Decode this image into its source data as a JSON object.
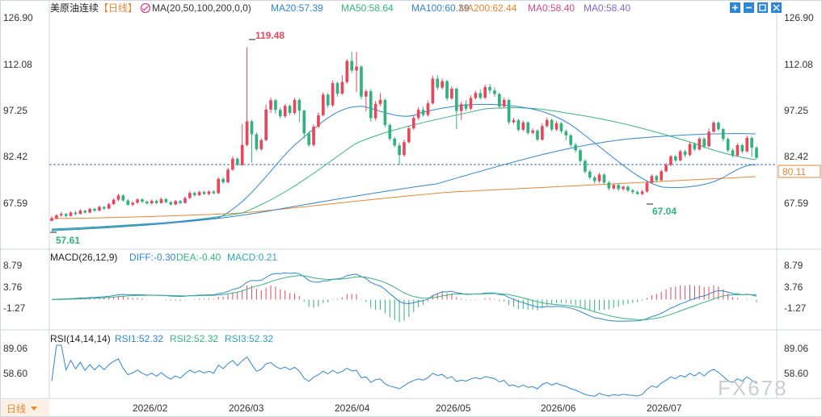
{
  "colors": {
    "up": "#e8465b",
    "down": "#2fb27e",
    "ma20": "#2e86d6",
    "ma50": "#34b57f",
    "ma100": "#2e86d6",
    "ma200": "#e8862f",
    "macd_diff": "#2e86d6",
    "macd_dea": "#34b57f",
    "rsi": "#2e86d6",
    "label_teal": "#2aa7b3",
    "price_tag": "#e8862f"
  },
  "header": {
    "title": "美原油连续",
    "period": "【日线】",
    "ma_params": "MA(20,50,100,200,0,0)",
    "ma_values": [
      "MA20:57.39",
      "MA50:58.64",
      "MA100:60.39",
      "MA200:62.44",
      "MA0:58.40",
      "MA0:58.40"
    ]
  },
  "macd_header": {
    "name": "MACD(26,12,9)",
    "values": [
      "DIFF:-0.30",
      "DEA:-0.40",
      "MACD:0.21"
    ]
  },
  "rsi_header": {
    "name": "RSI(14,14,14)",
    "values": [
      "RSI1:52.32",
      "RSI2:52.32",
      "RSI3:52.32"
    ]
  },
  "footer": {
    "period_button": "日线"
  },
  "watermark": "FX678",
  "window_icons": [
    "plus-icon",
    "minus-icon",
    "expand-icon",
    "close-icon"
  ],
  "chart_data": [
    {
      "type": "candlestick",
      "name": "美原油连续",
      "yaxis_ticks": [
        "126.90",
        "112.08",
        "97.25",
        "82.42",
        "67.59"
      ],
      "ylim": [
        53.0,
        130.0
      ],
      "xaxis_labels": [
        "2026/02",
        "2026/03",
        "2026/04",
        "2026/05",
        "2026/06",
        "2026/07"
      ],
      "last_price": "80.11",
      "annotations": [
        {
          "text": "119.48",
          "type": "high"
        },
        {
          "text": "57.61",
          "type": "low"
        },
        {
          "text": "67.04",
          "type": "low"
        }
      ],
      "candles": [
        [
          57.6,
          58.6,
          57.6,
          59.3
        ],
        [
          58.6,
          59.6,
          58.2,
          60.1
        ],
        [
          59.6,
          60.1,
          59.1,
          60.8
        ],
        [
          60.1,
          59.4,
          58.9,
          60.4
        ],
        [
          59.4,
          60.6,
          59.2,
          61.1
        ],
        [
          60.6,
          60.1,
          59.6,
          61.2
        ],
        [
          60.1,
          61.3,
          59.9,
          61.8
        ],
        [
          61.3,
          60.6,
          60.2,
          61.5
        ],
        [
          60.6,
          61.9,
          60.4,
          62.3
        ],
        [
          61.9,
          61.3,
          60.8,
          62.3
        ],
        [
          61.3,
          62.6,
          61.0,
          63.1
        ],
        [
          62.6,
          62.0,
          61.5,
          62.9
        ],
        [
          62.0,
          63.6,
          61.8,
          64.1
        ],
        [
          63.6,
          65.2,
          63.3,
          65.7
        ],
        [
          65.2,
          66.7,
          64.7,
          67.3
        ],
        [
          66.7,
          64.9,
          64.5,
          67.1
        ],
        [
          64.9,
          63.4,
          63.0,
          65.4
        ],
        [
          63.4,
          64.1,
          62.9,
          64.6
        ],
        [
          64.1,
          65.3,
          63.7,
          65.7
        ],
        [
          65.3,
          64.5,
          64.0,
          65.8
        ],
        [
          64.5,
          63.9,
          63.4,
          64.9
        ],
        [
          63.9,
          64.8,
          63.5,
          65.3
        ],
        [
          64.8,
          64.0,
          63.6,
          65.2
        ],
        [
          64.0,
          65.4,
          63.8,
          65.9
        ],
        [
          65.4,
          64.3,
          63.9,
          65.8
        ],
        [
          64.3,
          63.5,
          63.1,
          64.7
        ],
        [
          63.5,
          64.7,
          63.2,
          65.1
        ],
        [
          64.7,
          64.0,
          63.6,
          65.1
        ],
        [
          64.0,
          65.8,
          63.8,
          66.3
        ],
        [
          65.8,
          67.6,
          65.5,
          68.2
        ],
        [
          67.6,
          66.8,
          66.3,
          68.1
        ],
        [
          66.8,
          67.9,
          66.4,
          68.4
        ],
        [
          67.9,
          67.2,
          66.9,
          68.3
        ],
        [
          67.2,
          68.1,
          66.8,
          68.5
        ],
        [
          68.1,
          67.5,
          67.1,
          68.6
        ],
        [
          67.5,
          72.6,
          67.2,
          73.2
        ],
        [
          72.6,
          71.4,
          70.8,
          73.1
        ],
        [
          71.4,
          75.9,
          71.0,
          76.6
        ],
        [
          75.9,
          79.8,
          75.4,
          80.6
        ],
        [
          79.8,
          77.6,
          77.1,
          80.3
        ],
        [
          77.6,
          84.7,
          77.2,
          92.1
        ],
        [
          84.7,
          93.1,
          84.2,
          119.5
        ],
        [
          93.1,
          88.5,
          78.4,
          93.6
        ],
        [
          88.5,
          83.2,
          82.5,
          89.1
        ],
        [
          83.2,
          86.4,
          82.6,
          87.1
        ],
        [
          86.4,
          97.3,
          86.0,
          99.1
        ],
        [
          97.3,
          100.6,
          96.1,
          101.5
        ],
        [
          100.6,
          97.2,
          95.8,
          101.1
        ],
        [
          97.2,
          94.9,
          94.1,
          98.0
        ],
        [
          94.9,
          98.6,
          94.3,
          99.3
        ],
        [
          98.6,
          96.1,
          95.3,
          99.1
        ],
        [
          96.1,
          100.7,
          95.5,
          101.4
        ],
        [
          100.7,
          96.9,
          92.8,
          101.4
        ],
        [
          96.9,
          88.8,
          86.9,
          97.3
        ],
        [
          88.8,
          84.7,
          84.0,
          89.5
        ],
        [
          84.7,
          91.2,
          84.1,
          92.0
        ],
        [
          91.2,
          95.3,
          90.6,
          96.3
        ],
        [
          95.3,
          102.6,
          94.8,
          103.4
        ],
        [
          102.6,
          98.8,
          97.9,
          103.2
        ],
        [
          98.8,
          106.7,
          98.2,
          107.7
        ],
        [
          106.7,
          103.0,
          101.9,
          107.3
        ],
        [
          103.0,
          107.1,
          102.5,
          109.5
        ],
        [
          107.1,
          114.6,
          106.5,
          115.2
        ],
        [
          114.6,
          111.2,
          110.3,
          117.9
        ],
        [
          111.2,
          112.6,
          103.5,
          117.8
        ],
        [
          112.6,
          101.9,
          100.9,
          113.0
        ],
        [
          101.9,
          103.8,
          96.6,
          104.6
        ],
        [
          103.8,
          94.2,
          93.0,
          104.6
        ],
        [
          94.2,
          99.3,
          93.5,
          100.4
        ],
        [
          99.3,
          100.7,
          98.5,
          103.2
        ],
        [
          100.7,
          91.8,
          91.0,
          101.2
        ],
        [
          91.8,
          86.9,
          86.2,
          92.4
        ],
        [
          86.9,
          84.5,
          83.8,
          87.6
        ],
        [
          84.5,
          81.1,
          77.6,
          85.4
        ],
        [
          81.1,
          85.7,
          80.4,
          86.6
        ],
        [
          85.7,
          90.6,
          85.2,
          91.5
        ],
        [
          90.6,
          94.3,
          90.0,
          95.2
        ],
        [
          94.3,
          97.2,
          93.6,
          98.1
        ],
        [
          97.2,
          95.4,
          94.7,
          98.3
        ],
        [
          95.4,
          99.5,
          94.8,
          100.4
        ],
        [
          99.5,
          108.3,
          99.1,
          109.4
        ],
        [
          108.3,
          105.1,
          104.2,
          109.6
        ],
        [
          105.1,
          107.4,
          104.5,
          108.3
        ],
        [
          107.4,
          101.3,
          100.5,
          107.9
        ],
        [
          101.3,
          104.7,
          100.7,
          105.6
        ],
        [
          104.7,
          96.8,
          90.3,
          105.2
        ],
        [
          96.8,
          99.2,
          93.6,
          100.1
        ],
        [
          99.2,
          97.6,
          96.8,
          100.7
        ],
        [
          97.6,
          101.4,
          97.1,
          102.3
        ],
        [
          101.4,
          103.2,
          100.9,
          104.0
        ],
        [
          103.2,
          101.5,
          100.8,
          104.4
        ],
        [
          101.5,
          105.3,
          101.1,
          106.2
        ],
        [
          105.3,
          104.1,
          102.9,
          106.5
        ],
        [
          104.1,
          102.8,
          101.8,
          105.2
        ],
        [
          102.8,
          98.4,
          97.6,
          103.4
        ],
        [
          98.4,
          100.7,
          97.9,
          101.5
        ],
        [
          100.7,
          92.8,
          92.0,
          101.1
        ],
        [
          92.8,
          93.5,
          92.2,
          94.3
        ],
        [
          93.5,
          90.1,
          89.4,
          94.0
        ],
        [
          90.1,
          92.7,
          89.6,
          93.4
        ],
        [
          92.7,
          89.0,
          88.3,
          93.1
        ],
        [
          89.0,
          89.8,
          88.5,
          90.6
        ],
        [
          89.8,
          86.6,
          86.0,
          90.3
        ],
        [
          86.6,
          91.4,
          86.2,
          92.3
        ],
        [
          91.4,
          93.6,
          90.9,
          94.4
        ],
        [
          93.6,
          90.2,
          89.5,
          94.1
        ],
        [
          90.2,
          92.4,
          89.7,
          93.2
        ],
        [
          92.4,
          89.6,
          88.8,
          92.9
        ],
        [
          89.6,
          88.1,
          86.4,
          90.2
        ],
        [
          88.1,
          84.7,
          84.0,
          88.7
        ],
        [
          84.7,
          82.8,
          82.0,
          85.4
        ],
        [
          82.8,
          79.0,
          78.3,
          83.3
        ],
        [
          79.0,
          75.2,
          74.5,
          79.6
        ],
        [
          75.2,
          73.1,
          72.4,
          75.9
        ],
        [
          73.1,
          71.8,
          70.9,
          73.7
        ],
        [
          71.8,
          74.1,
          71.2,
          74.8
        ],
        [
          74.1,
          71.3,
          70.6,
          74.6
        ],
        [
          71.3,
          69.2,
          68.5,
          71.9
        ],
        [
          69.2,
          70.4,
          68.7,
          71.0
        ],
        [
          70.4,
          69.0,
          68.3,
          71.0
        ],
        [
          69.0,
          69.8,
          68.4,
          70.3
        ],
        [
          69.8,
          68.5,
          67.9,
          70.3
        ],
        [
          68.5,
          67.9,
          67.2,
          69.1
        ],
        [
          67.9,
          67.2,
          67.0,
          68.5
        ],
        [
          67.2,
          68.1,
          66.8,
          68.7
        ],
        [
          68.1,
          71.2,
          67.7,
          71.8
        ],
        [
          71.2,
          73.6,
          70.9,
          74.3
        ],
        [
          73.6,
          72.1,
          71.4,
          74.0
        ],
        [
          72.1,
          75.3,
          71.8,
          75.9
        ],
        [
          75.3,
          77.6,
          74.9,
          78.2
        ],
        [
          77.6,
          80.6,
          77.1,
          81.2
        ],
        [
          80.6,
          79.2,
          78.5,
          81.1
        ],
        [
          79.2,
          82.4,
          78.8,
          83.0
        ],
        [
          82.4,
          81.1,
          80.3,
          82.9
        ],
        [
          81.1,
          85.0,
          80.6,
          85.7
        ],
        [
          85.0,
          83.1,
          82.5,
          85.6
        ],
        [
          83.1,
          86.9,
          82.7,
          87.5
        ],
        [
          86.9,
          84.2,
          83.5,
          87.4
        ],
        [
          84.2,
          89.4,
          83.9,
          90.6
        ],
        [
          89.4,
          92.6,
          89.0,
          93.3
        ],
        [
          92.6,
          90.3,
          89.6,
          93.1
        ],
        [
          90.3,
          86.8,
          86.0,
          90.8
        ],
        [
          86.8,
          82.8,
          82.1,
          87.4
        ],
        [
          82.8,
          80.9,
          80.2,
          83.5
        ],
        [
          80.9,
          84.6,
          80.5,
          85.3
        ],
        [
          84.6,
          82.4,
          81.7,
          85.1
        ],
        [
          82.4,
          87.2,
          81.9,
          88.0
        ],
        [
          87.2,
          83.7,
          80.4,
          87.8
        ],
        [
          83.7,
          80.1,
          79.6,
          84.3
        ]
      ]
    },
    {
      "type": "macd",
      "yaxis_ticks": [
        "8.79",
        "3.76",
        "-1.27"
      ],
      "ylim": [
        -8.5,
        10.5
      ]
    },
    {
      "type": "rsi",
      "yaxis_ticks": [
        "89.06",
        "58.60"
      ],
      "ylim": [
        28.0,
        100.0
      ]
    }
  ]
}
